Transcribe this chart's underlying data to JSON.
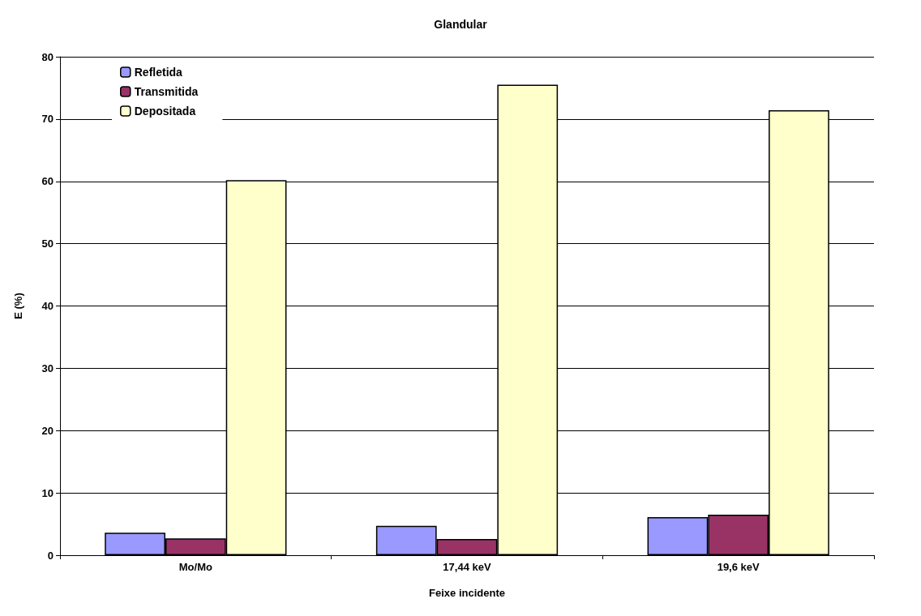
{
  "chart_data": {
    "type": "bar",
    "title": "Glandular",
    "xlabel": "Feixe incidente",
    "ylabel": "E (%)",
    "categories": [
      "Mo/Mo",
      "17,44 keV",
      "19,6 keV"
    ],
    "series": [
      {
        "name": "Refletida",
        "color": "#9999ff",
        "values": [
          3.6,
          4.7,
          6.1
        ]
      },
      {
        "name": "Transmitida",
        "color": "#993366",
        "values": [
          2.7,
          2.6,
          6.5
        ]
      },
      {
        "name": "Depositada",
        "color": "#ffffcc",
        "values": [
          60.2,
          75.5,
          71.4
        ]
      }
    ],
    "ylim": [
      0,
      80
    ],
    "yticks": [
      0,
      10,
      20,
      30,
      40,
      50,
      60,
      70,
      80
    ],
    "grid": "y",
    "legend": "top left"
  }
}
